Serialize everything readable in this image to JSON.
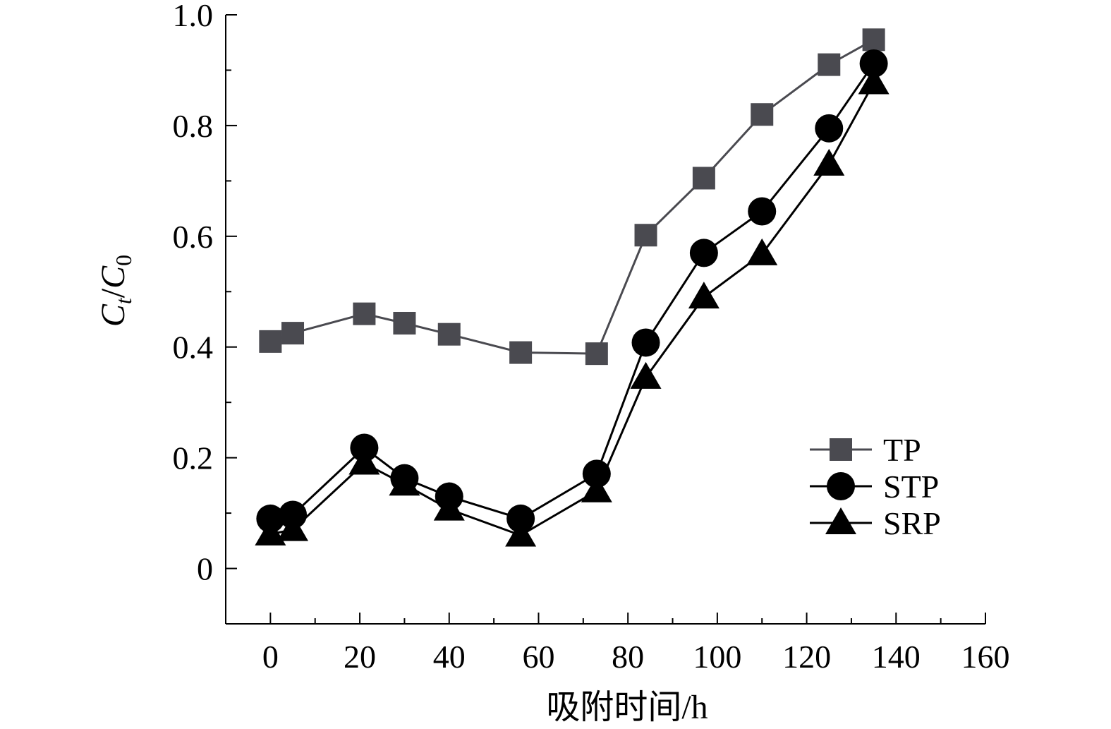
{
  "chart_data": {
    "type": "line",
    "title": "",
    "xlabel": "吸附时间/h",
    "ylabel": {
      "c1": "C",
      "sub1": "t",
      "slash": "/",
      "c2": "C",
      "sub2": "0"
    },
    "xlim": [
      -10,
      160
    ],
    "ylim": [
      -0.1,
      1.0
    ],
    "xticks": [
      0,
      20,
      40,
      60,
      80,
      100,
      120,
      140,
      160
    ],
    "yticks": [
      0,
      0.2,
      0.4,
      0.6,
      0.8,
      1.0
    ],
    "xtick_labels": [
      "0",
      "20",
      "40",
      "60",
      "80",
      "100",
      "120",
      "140",
      "160"
    ],
    "ytick_labels": [
      "0",
      "0.2",
      "0.4",
      "0.6",
      "0.8",
      "1.0"
    ],
    "grid": false,
    "legend_position": "lower-right",
    "series": [
      {
        "name": "TP",
        "marker": "square",
        "color": "#4a4a50",
        "x": [
          0,
          5,
          21,
          30,
          40,
          56,
          73,
          84,
          97,
          110,
          125,
          135
        ],
        "y": [
          0.41,
          0.425,
          0.46,
          0.443,
          0.423,
          0.39,
          0.388,
          0.602,
          0.705,
          0.82,
          0.91,
          0.955
        ]
      },
      {
        "name": "STP",
        "marker": "circle",
        "color": "#000000",
        "x": [
          0,
          5,
          21,
          30,
          40,
          56,
          73,
          84,
          97,
          110,
          125,
          135
        ],
        "y": [
          0.09,
          0.097,
          0.218,
          0.163,
          0.13,
          0.09,
          0.171,
          0.408,
          0.57,
          0.645,
          0.795,
          0.912
        ]
      },
      {
        "name": "SRP",
        "marker": "triangle",
        "color": "#000000",
        "x": [
          0,
          5,
          21,
          30,
          40,
          56,
          73,
          84,
          97,
          110,
          125,
          135
        ],
        "y": [
          0.062,
          0.07,
          0.19,
          0.152,
          0.107,
          0.06,
          0.14,
          0.345,
          0.49,
          0.568,
          0.73,
          0.877
        ]
      }
    ]
  }
}
